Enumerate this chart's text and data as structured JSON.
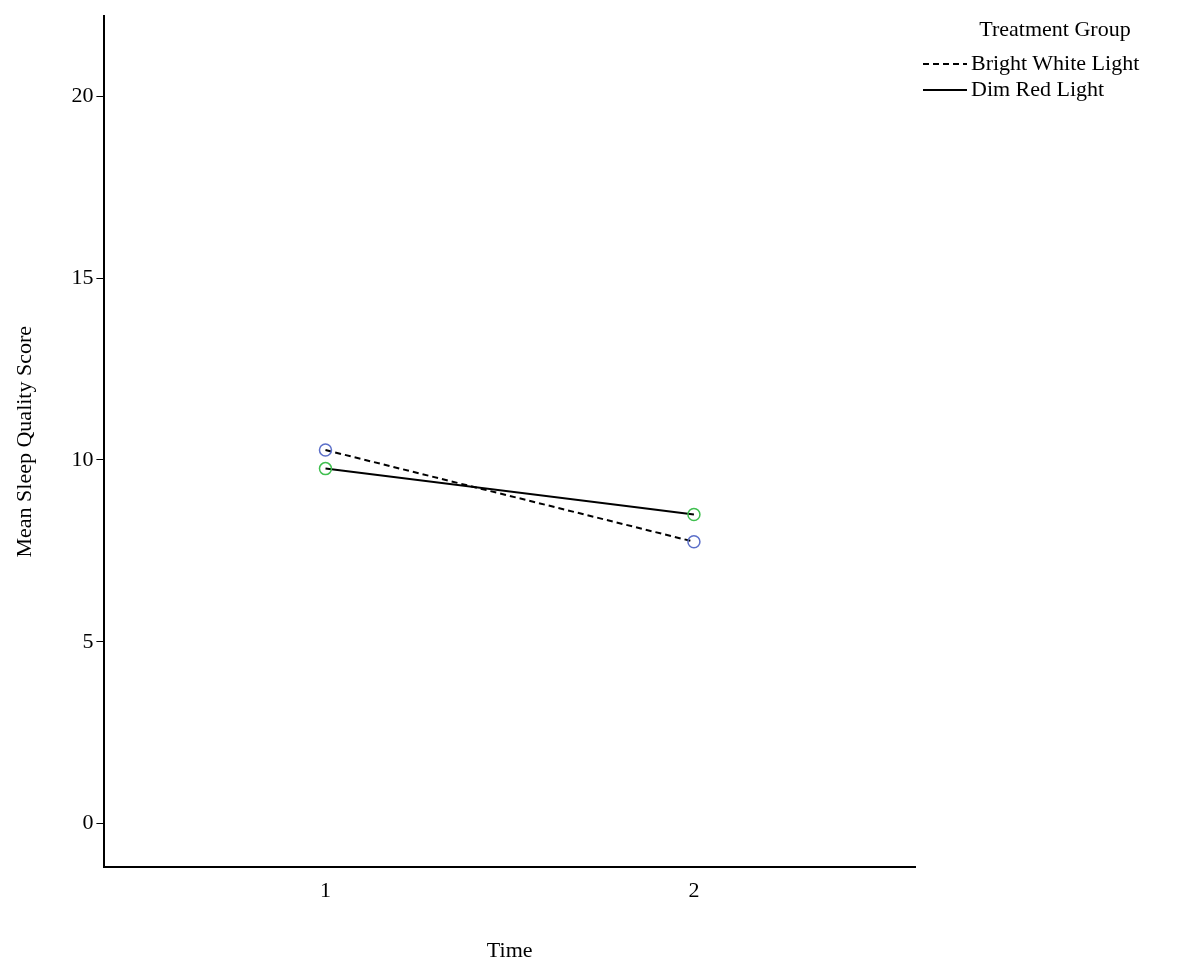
{
  "chart_data": {
    "type": "line",
    "xlabel": "Time",
    "ylabel": "Mean Sleep Quality Score",
    "legend_title": "Treatment Group",
    "x": [
      1,
      2
    ],
    "xlim": [
      0.4,
      2.6
    ],
    "xticks": [
      1,
      2
    ],
    "ylim": [
      -1.2,
      22.2
    ],
    "yticks": [
      0,
      5,
      10,
      15,
      20
    ],
    "grid": false,
    "legend": "top right",
    "marker": "circle",
    "series": [
      {
        "name": "Bright White Light",
        "color": "#000000",
        "colors": [
          "#5b6fc9",
          "#5b6fc9"
        ],
        "line_style": "dashed",
        "values": [
          10.27,
          7.75
        ]
      },
      {
        "name": "Dim Red Light",
        "color": "#000000",
        "colors": [
          "#3fbf4f",
          "#3fbf4f"
        ],
        "line_style": "solid",
        "values": [
          9.76,
          8.5
        ]
      }
    ]
  }
}
